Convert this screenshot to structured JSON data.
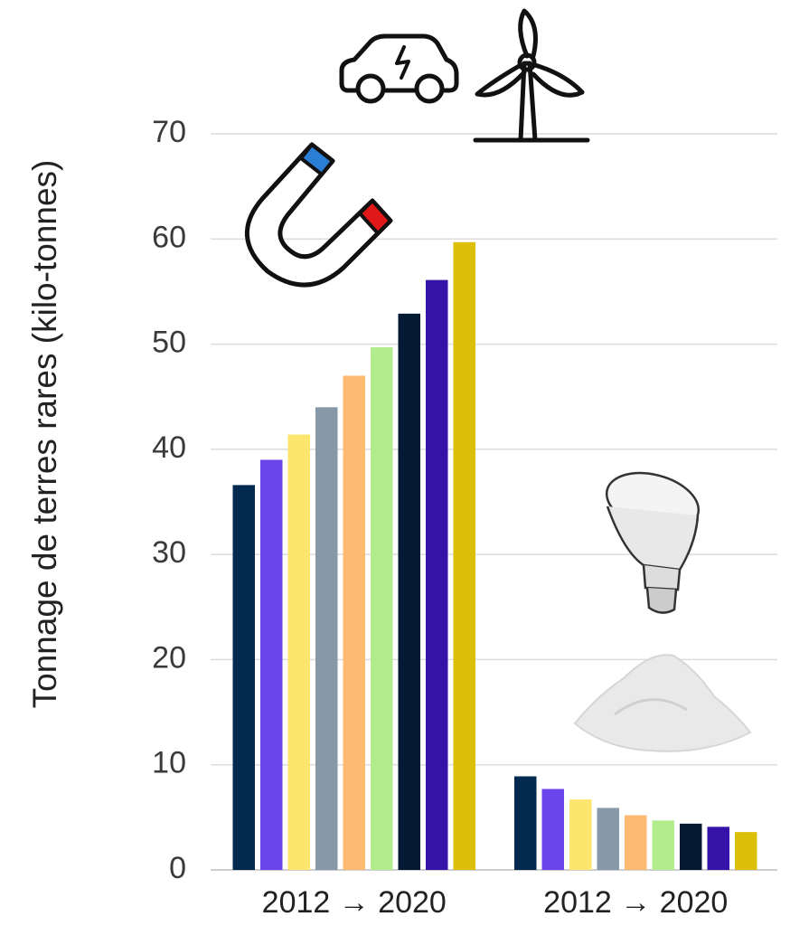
{
  "chart_data": {
    "type": "bar",
    "ylabel": "Tonnage de terres rares (kilo-tonnes)",
    "categories": [
      "2012 → 2020",
      "2012 → 2020"
    ],
    "series": [
      {
        "color": "#03294f",
        "values": [
          36.6,
          8.9
        ]
      },
      {
        "color": "#6b44ec",
        "values": [
          39.0,
          7.7
        ]
      },
      {
        "color": "#fde66e",
        "values": [
          41.4,
          6.7
        ]
      },
      {
        "color": "#8799a8",
        "values": [
          44.0,
          5.9
        ]
      },
      {
        "color": "#fdbb72",
        "values": [
          47.0,
          5.2
        ]
      },
      {
        "color": "#b2ec8c",
        "values": [
          49.7,
          4.7
        ]
      },
      {
        "color": "#041a33",
        "values": [
          52.9,
          4.4
        ]
      },
      {
        "color": "#3512a8",
        "values": [
          56.1,
          4.1
        ]
      },
      {
        "color": "#dbbf08",
        "values": [
          59.7,
          3.6
        ]
      }
    ],
    "ylim": [
      0,
      70
    ],
    "yticks": [
      0,
      10,
      20,
      30,
      40,
      50,
      60,
      70
    ],
    "grid": true
  }
}
